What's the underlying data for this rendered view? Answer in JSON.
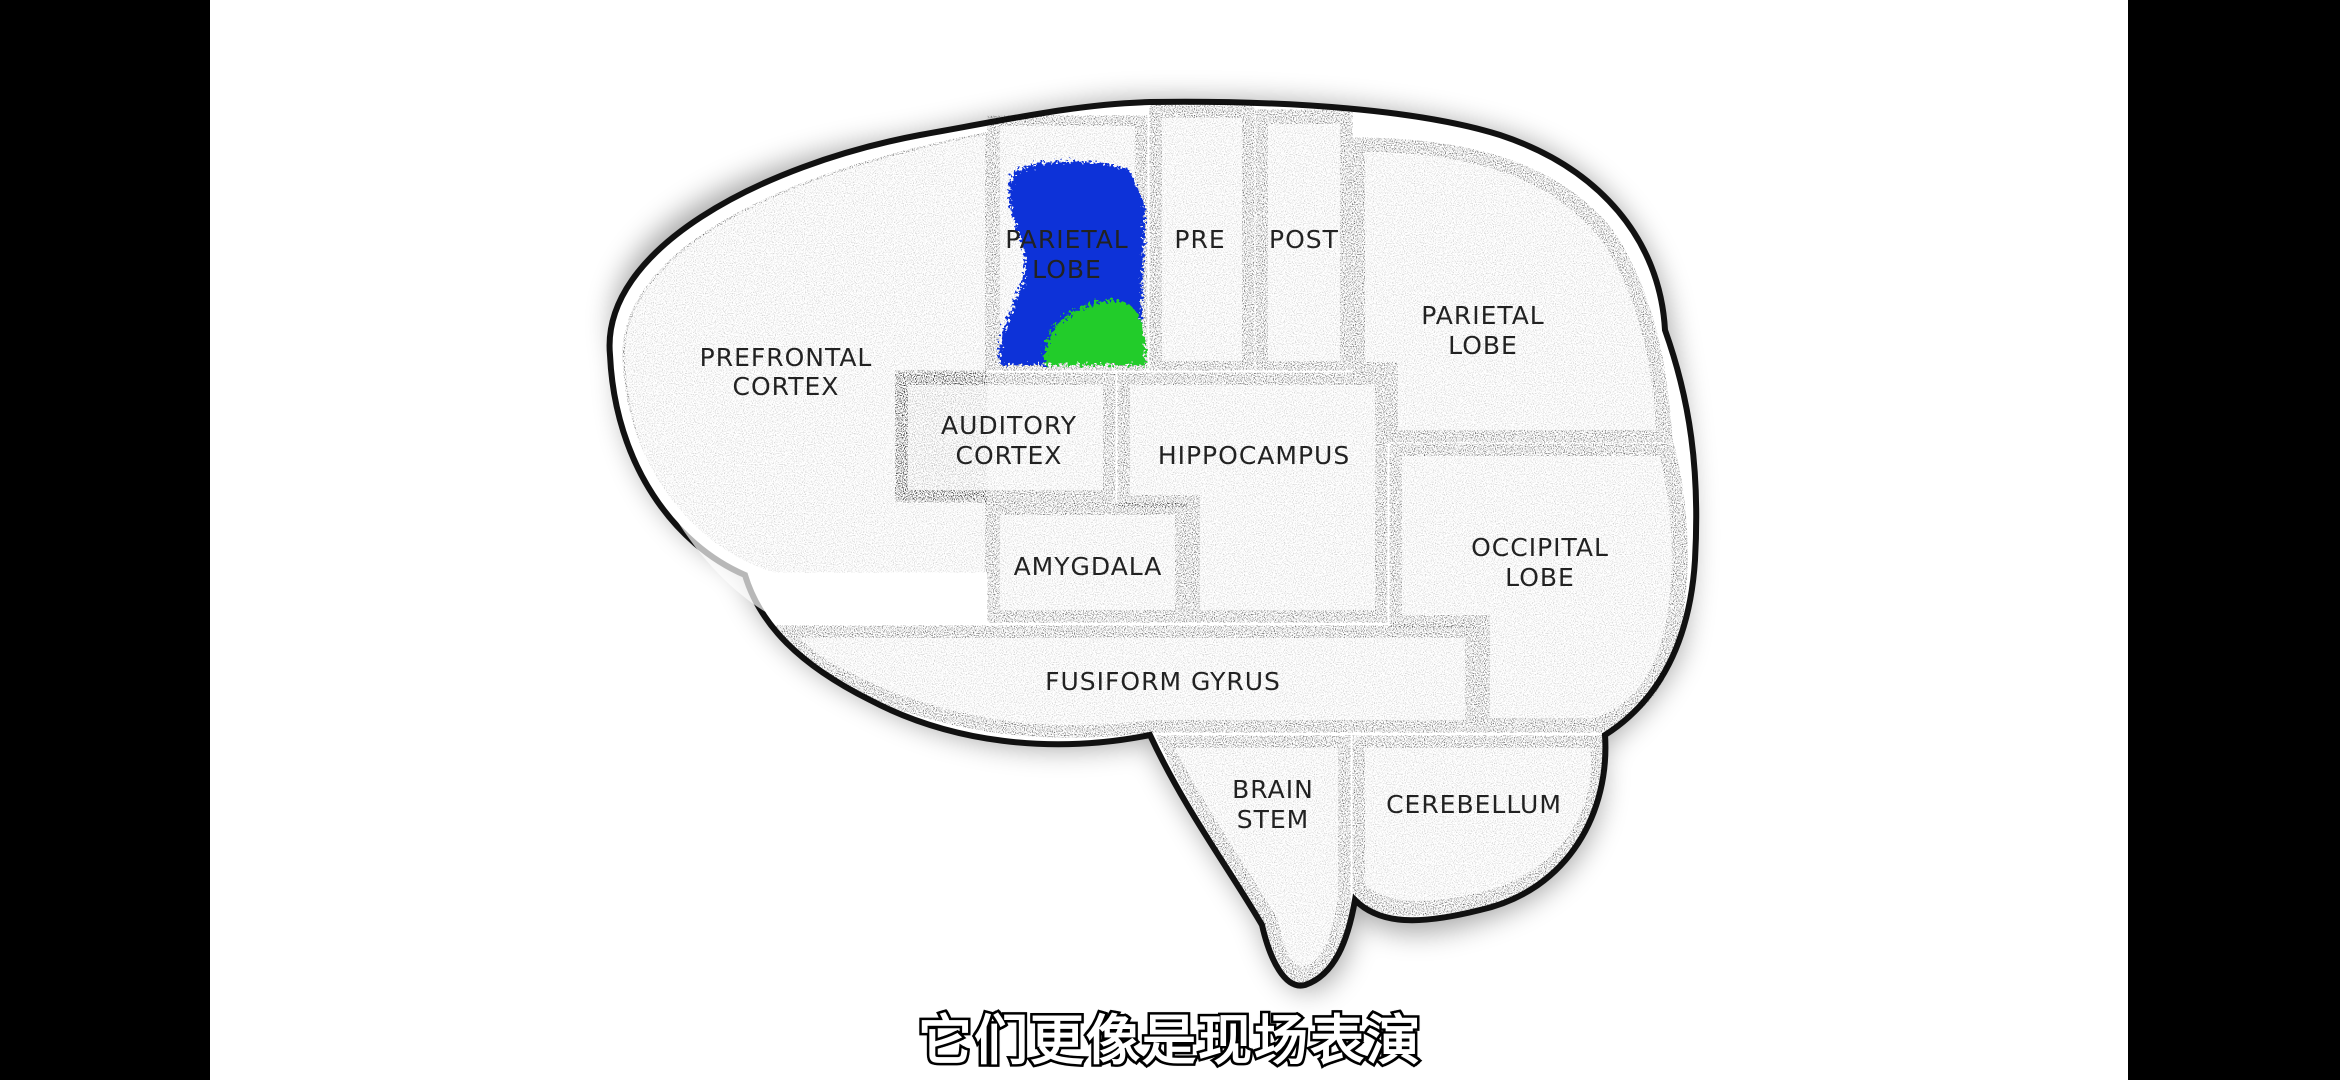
{
  "brain_regions": {
    "prefrontal_cortex": [
      "PREFRONTAL",
      "CORTEX"
    ],
    "parietal_lobe_top": [
      "PARIETAL",
      "LOBE"
    ],
    "pre": "PRE",
    "post": "POST",
    "parietal_lobe_right": [
      "PARIETAL",
      "LOBE"
    ],
    "auditory_cortex": [
      "AUDITORY",
      "CORTEX"
    ],
    "hippocampus": "HIPPOCAMPUS",
    "occipital_lobe": [
      "OCCIPITAL",
      "LOBE"
    ],
    "amygdala": "AMYGDALA",
    "fusiform_gyrus": "FUSIFORM GYRUS",
    "brain_stem": [
      "BRAIN",
      "STEM"
    ],
    "cerebellum": "CEREBELLUM"
  },
  "highlight": {
    "region": "parietal_lobe_top",
    "colors": [
      "#1030d8",
      "#22cc2a"
    ]
  },
  "subtitle": "它们更像是现场表演"
}
